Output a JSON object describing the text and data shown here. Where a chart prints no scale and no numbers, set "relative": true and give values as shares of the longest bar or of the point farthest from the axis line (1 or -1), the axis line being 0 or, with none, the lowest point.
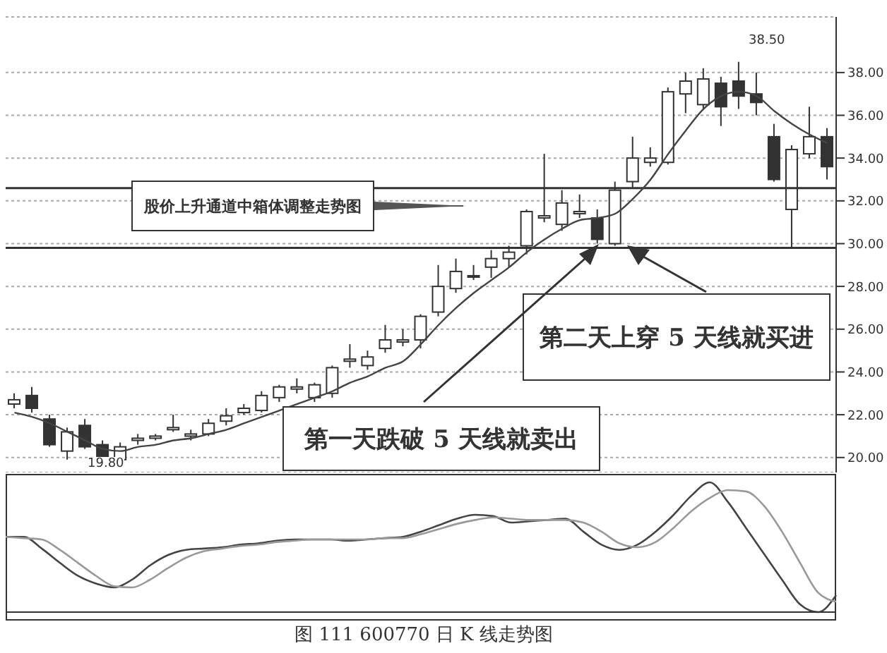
{
  "chart_data": [
    {
      "type": "candlestick",
      "color": "#333333",
      "categories": [
        null,
        null,
        null,
        null,
        null,
        null,
        null,
        null,
        null,
        null,
        null,
        null,
        null,
        null,
        null,
        null,
        null,
        null,
        null,
        null,
        null,
        null,
        null,
        null,
        null,
        null,
        null,
        null,
        null,
        null,
        null,
        null,
        null,
        null,
        null,
        null,
        null,
        null,
        null,
        null,
        null,
        null,
        null,
        null,
        null,
        null,
        null
      ],
      "ohlc": [
        [
          22.5,
          23.0,
          22.3,
          22.7
        ],
        [
          22.9,
          23.3,
          22.1,
          22.3
        ],
        [
          21.8,
          22.0,
          20.5,
          20.6
        ],
        [
          20.3,
          21.4,
          19.9,
          21.2
        ],
        [
          21.5,
          21.8,
          20.4,
          20.5
        ],
        [
          20.6,
          20.8,
          19.9,
          19.9
        ],
        [
          19.9,
          20.7,
          19.8,
          20.5
        ],
        [
          20.8,
          21.1,
          20.6,
          20.9
        ],
        [
          20.9,
          21.1,
          20.8,
          21.0
        ],
        [
          21.3,
          22.0,
          21.2,
          21.4
        ],
        [
          21.0,
          21.3,
          20.8,
          21.1
        ],
        [
          21.1,
          21.8,
          21.0,
          21.6
        ],
        [
          21.7,
          22.3,
          21.5,
          21.95
        ],
        [
          22.1,
          22.5,
          22.0,
          22.3
        ],
        [
          22.2,
          23.1,
          22.1,
          22.9
        ],
        [
          22.8,
          23.4,
          22.6,
          23.3
        ],
        [
          23.2,
          23.7,
          23.0,
          23.3
        ],
        [
          22.8,
          23.5,
          22.6,
          23.4
        ],
        [
          23.0,
          24.3,
          22.8,
          24.2
        ],
        [
          24.5,
          25.3,
          24.2,
          24.6
        ],
        [
          24.3,
          25.0,
          24.1,
          24.7
        ],
        [
          25.1,
          26.2,
          24.9,
          25.5
        ],
        [
          25.4,
          26.0,
          25.2,
          25.5
        ],
        [
          25.5,
          26.7,
          25.1,
          26.6
        ],
        [
          26.8,
          29.0,
          26.6,
          28.0
        ],
        [
          27.9,
          29.3,
          27.7,
          28.7
        ],
        [
          28.5,
          29.0,
          28.3,
          28.5
        ],
        [
          28.9,
          29.7,
          28.4,
          29.3
        ],
        [
          29.3,
          29.9,
          28.9,
          29.6
        ],
        [
          29.9,
          31.6,
          29.5,
          31.5
        ],
        [
          31.2,
          34.2,
          31.0,
          31.3
        ],
        [
          30.9,
          32.5,
          30.6,
          31.9
        ],
        [
          31.4,
          32.3,
          31.2,
          31.5
        ],
        [
          31.2,
          31.6,
          30.0,
          30.2
        ],
        [
          30.0,
          32.9,
          29.9,
          32.5
        ],
        [
          32.9,
          35.0,
          32.6,
          34.0
        ],
        [
          33.8,
          34.5,
          33.6,
          34.0
        ],
        [
          33.8,
          37.3,
          33.7,
          37.1
        ],
        [
          37.0,
          38.0,
          36.1,
          37.6
        ],
        [
          36.5,
          38.2,
          36.3,
          37.7
        ],
        [
          37.5,
          37.8,
          35.5,
          36.4
        ],
        [
          37.6,
          38.5,
          36.3,
          36.9
        ],
        [
          37.0,
          38.0,
          36.0,
          36.6
        ],
        [
          35.0,
          35.6,
          32.9,
          33.0
        ],
        [
          31.6,
          34.6,
          29.8,
          34.4
        ],
        [
          34.2,
          36.4,
          34.0,
          35.0
        ],
        [
          35.0,
          35.4,
          33.0,
          33.6
        ]
      ],
      "series": [
        {
          "type": "line",
          "color": "#444444",
          "values": [
            22.1,
            21.9,
            21.6,
            21.2,
            20.8,
            20.4,
            20.3,
            20.5,
            20.6,
            20.8,
            20.9,
            21.1,
            21.3,
            21.6,
            21.9,
            22.2,
            22.5,
            22.8,
            23.1,
            23.5,
            23.8,
            24.2,
            24.5,
            25.3,
            26.2,
            27.0,
            27.7,
            28.3,
            28.9,
            29.6,
            30.2,
            30.7,
            31.1,
            31.2,
            31.4,
            32.1,
            33.0,
            34.2,
            35.3,
            36.3,
            36.9,
            37.1,
            36.9,
            36.2,
            35.6,
            35.1,
            34.7
          ]
        }
      ],
      "ylim": [
        19.3,
        40.6
      ],
      "yticks": [
        {
          "value": 20,
          "label": "20.00"
        },
        {
          "value": 22,
          "label": "22.00"
        },
        {
          "value": 24,
          "label": "24.00"
        },
        {
          "value": 26,
          "label": "26.00"
        },
        {
          "value": 28,
          "label": "28.00"
        },
        {
          "value": 30,
          "label": "30.00"
        },
        {
          "value": 32,
          "label": "32.00"
        },
        {
          "value": 34,
          "label": "34.00"
        },
        {
          "value": 36,
          "label": "36.00"
        },
        {
          "value": 38,
          "label": "38.00"
        }
      ],
      "grid": "y",
      "ref_lines": [
        {
          "axis": "y",
          "value": 32.6,
          "color": "#333333"
        },
        {
          "axis": "y",
          "value": 29.8,
          "color": "#333333"
        }
      ],
      "annotations": [
        "股价上升通道中箱体调整走势图",
        "第二天上穿 5 天线就买进",
        "第一天跌破 5 天线就卖出",
        "38.50",
        "19.80"
      ]
    },
    {
      "type": "line",
      "relative": true,
      "categories": [
        null,
        null,
        null,
        null,
        null,
        null,
        null,
        null,
        null,
        null,
        null,
        null,
        null,
        null,
        null,
        null,
        null,
        null,
        null,
        null,
        null,
        null,
        null,
        null,
        null,
        null,
        null,
        null,
        null,
        null,
        null,
        null,
        null,
        null,
        null,
        null,
        null,
        null,
        null,
        null,
        null,
        null,
        null,
        null,
        null,
        null,
        null
      ],
      "series": [
        {
          "color": "#444444",
          "values": [
            0.58,
            0.58,
            0.49,
            0.38,
            0.28,
            0.22,
            0.19,
            0.25,
            0.36,
            0.44,
            0.48,
            0.49,
            0.5,
            0.52,
            0.53,
            0.55,
            0.56,
            0.56,
            0.56,
            0.55,
            0.56,
            0.57,
            0.58,
            0.62,
            0.67,
            0.72,
            0.75,
            0.74,
            0.69,
            0.7,
            0.71,
            0.72,
            0.62,
            0.52,
            0.48,
            0.52,
            0.62,
            0.75,
            0.9,
            1.0,
            0.85,
            0.65,
            0.45,
            0.25,
            0.06,
            0,
            0.13
          ]
        },
        {
          "color": "#999999",
          "values": [
            0.58,
            0.57,
            0.56,
            0.48,
            0.38,
            0.28,
            0.2,
            0.19,
            0.25,
            0.34,
            0.42,
            0.47,
            0.49,
            0.51,
            0.52,
            0.54,
            0.55,
            0.56,
            0.56,
            0.56,
            0.56,
            0.57,
            0.57,
            0.6,
            0.64,
            0.68,
            0.71,
            0.73,
            0.72,
            0.71,
            0.71,
            0.71,
            0.69,
            0.62,
            0.53,
            0.5,
            0.54,
            0.65,
            0.78,
            0.88,
            0.94,
            0.93,
            0.82,
            0.62,
            0.38,
            0.15,
            0.08
          ]
        }
      ],
      "annotations": [
        "图 111    600770 日 K 线走势图"
      ]
    }
  ]
}
